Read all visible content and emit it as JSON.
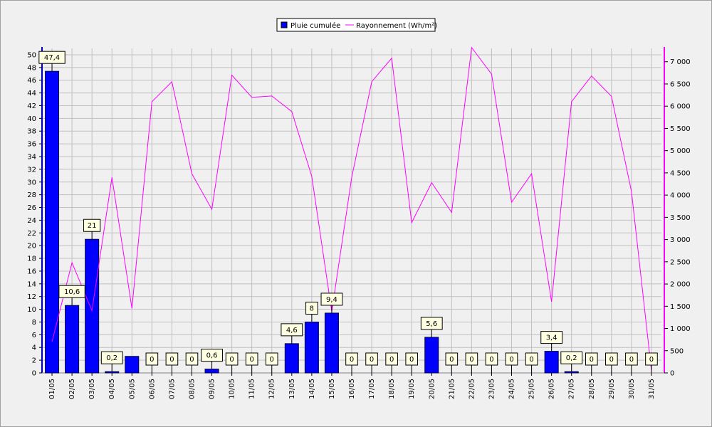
{
  "chart_data": {
    "type": "bar",
    "categories": [
      "01/05",
      "02/05",
      "03/05",
      "04/05",
      "05/05",
      "06/05",
      "07/05",
      "08/05",
      "09/05",
      "10/05",
      "11/05",
      "12/05",
      "13/05",
      "14/05",
      "15/05",
      "16/05",
      "17/05",
      "18/05",
      "19/05",
      "20/05",
      "21/05",
      "22/05",
      "23/05",
      "24/05",
      "25/05",
      "26/05",
      "27/05",
      "28/05",
      "29/05",
      "30/05",
      "31/05"
    ],
    "series": [
      {
        "name": "Pluie cumulée",
        "type": "bar",
        "axis": "left",
        "color": "#0000ff",
        "values": [
          47.4,
          10.6,
          21,
          0.2,
          2.6,
          0,
          0,
          0,
          0.6,
          0,
          0,
          0,
          4.6,
          8,
          9.4,
          0,
          0,
          0,
          0,
          5.6,
          0,
          0,
          0,
          0,
          0,
          3.4,
          0.2,
          0,
          0,
          0,
          0
        ],
        "labels": [
          "47,4",
          "10,6",
          "21",
          "0,2",
          "",
          "0",
          "0",
          "0",
          "0,6",
          "0",
          "0",
          "0",
          "4,6",
          "8",
          "9,4",
          "0",
          "0",
          "0",
          "0",
          "5,6",
          "0",
          "0",
          "0",
          "0",
          "0",
          "3,4",
          "0,2",
          "0",
          "0",
          "0",
          "0"
        ]
      },
      {
        "name": "Rayonnement (Wh/m²)",
        "type": "line",
        "axis": "right",
        "color": "#ff00ff",
        "values": [
          700,
          2480,
          1400,
          4400,
          1450,
          6100,
          6550,
          4480,
          3680,
          6700,
          6200,
          6230,
          5880,
          4420,
          1380,
          4400,
          6550,
          7080,
          3380,
          4280,
          3610,
          7320,
          6720,
          3840,
          4480,
          1600,
          6100,
          6680,
          6220,
          4080,
          50
        ]
      }
    ],
    "yleft": {
      "min": 0,
      "max": 51,
      "ticks": [
        0,
        2,
        4,
        6,
        8,
        10,
        12,
        14,
        16,
        18,
        20,
        22,
        24,
        26,
        28,
        30,
        32,
        34,
        36,
        38,
        40,
        42,
        44,
        46,
        48,
        50
      ]
    },
    "yright": {
      "min": 0,
      "max": 7300,
      "ticks": [
        0,
        500,
        1000,
        1500,
        2000,
        2500,
        3000,
        3500,
        4000,
        4500,
        5000,
        5500,
        6000,
        6500,
        7000
      ],
      "tick_labels": [
        "0",
        "500",
        "1 000",
        "1 500",
        "2 000",
        "2 500",
        "3 000",
        "3 500",
        "4 000",
        "4 500",
        "5 000",
        "5 500",
        "6 000",
        "6 500",
        "7 000"
      ]
    },
    "grid": true,
    "legend_position": "top-center"
  }
}
